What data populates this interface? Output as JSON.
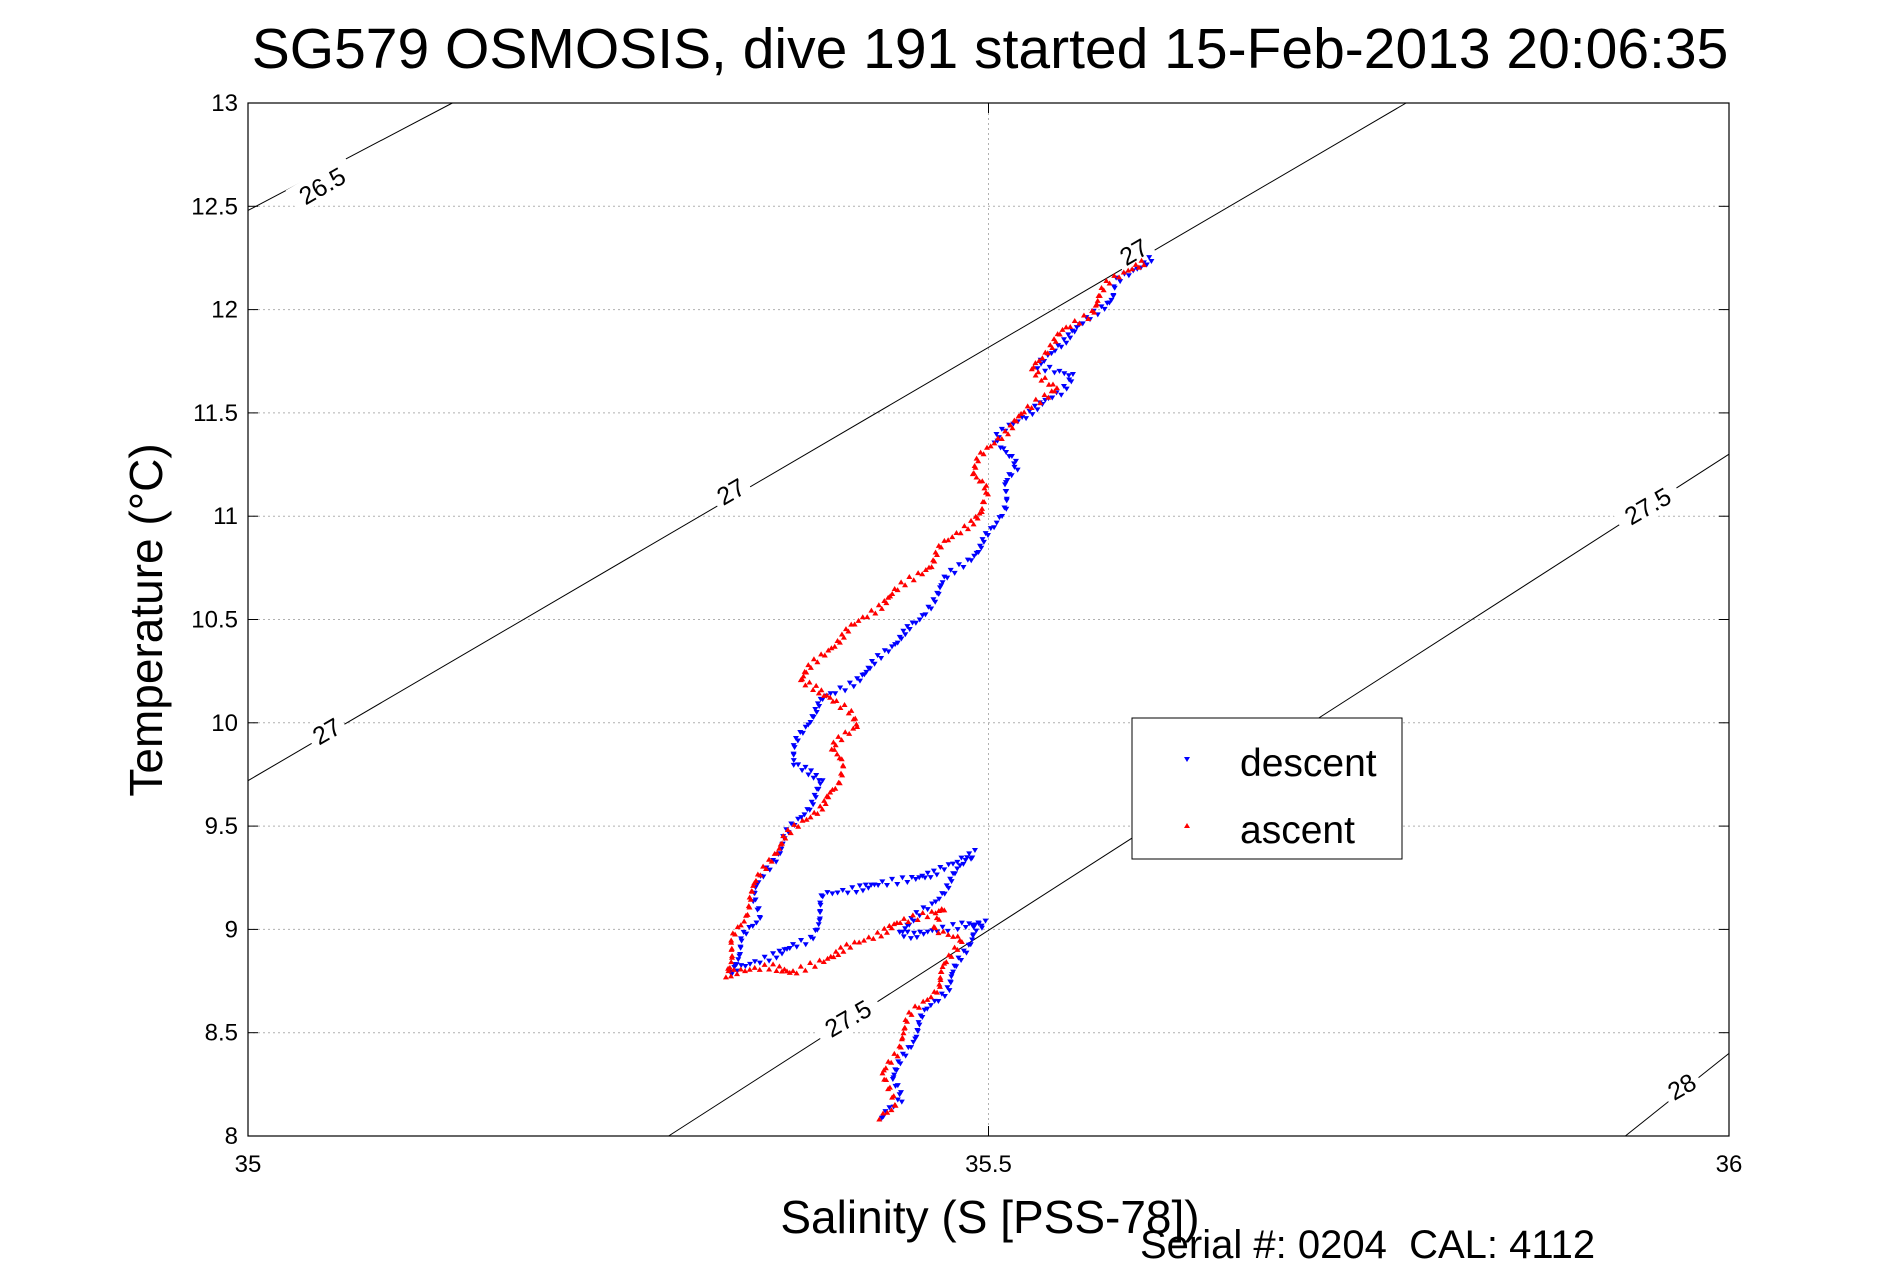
{
  "chart_data": {
    "type": "scatter",
    "title": "SG579 OSMOSIS, dive 191 started 15-Feb-2013 20:06:35",
    "xlabel": "Salinity (S [PSS-78])",
    "ylabel": "Temperature (°C)",
    "xlim": [
      35,
      36
    ],
    "ylim": [
      8,
      13
    ],
    "x_ticks": [
      "35",
      "35.5",
      "36"
    ],
    "y_ticks": [
      "8",
      "8.5",
      "9",
      "9.5",
      "10",
      "10.5",
      "11",
      "11.5",
      "12",
      "12.5",
      "13"
    ],
    "grid": true,
    "legend_position": "center-right",
    "footer": "Serial #: 0204  CAL: 4112",
    "isopycnals": [
      {
        "sigma": 26.5,
        "label": "26.5",
        "points": [
          [
            35.0,
            12.48
          ],
          [
            35.138,
            13.0
          ]
        ]
      },
      {
        "sigma": 27.0,
        "label": "27",
        "points": [
          [
            35.0,
            9.72
          ],
          [
            35.782,
            13.0
          ]
        ]
      },
      {
        "sigma": 27.5,
        "label": "27.5",
        "points": [
          [
            35.284,
            8.0
          ],
          [
            36.0,
            11.3
          ]
        ]
      },
      {
        "sigma": 28.0,
        "label": "28",
        "points": [
          [
            35.93,
            8.0
          ],
          [
            36.0,
            8.4
          ]
        ]
      }
    ],
    "isopycnal_labels": [
      {
        "text": "26.5",
        "x": 35.05,
        "y": 12.6
      },
      {
        "text": "27",
        "x": 35.598,
        "y": 12.28
      },
      {
        "text": "27",
        "x": 35.326,
        "y": 11.12
      },
      {
        "text": "27",
        "x": 35.053,
        "y": 9.96
      },
      {
        "text": "27.5",
        "x": 35.945,
        "y": 11.05
      },
      {
        "text": "27.5",
        "x": 35.405,
        "y": 8.57
      },
      {
        "text": "28",
        "x": 35.968,
        "y": 8.24
      }
    ],
    "series": [
      {
        "name": "descent",
        "color": "#0000ff",
        "marker": "triangle-down",
        "points": [
          [
            35.61,
            12.25
          ],
          [
            35.603,
            12.22
          ],
          [
            35.588,
            12.14
          ],
          [
            35.585,
            12.06
          ],
          [
            35.57,
            11.98
          ],
          [
            35.56,
            11.9
          ],
          [
            35.545,
            11.82
          ],
          [
            35.535,
            11.73
          ],
          [
            35.555,
            11.68
          ],
          [
            35.55,
            11.6
          ],
          [
            35.53,
            11.52
          ],
          [
            35.517,
            11.45
          ],
          [
            35.505,
            11.37
          ],
          [
            35.51,
            11.31
          ],
          [
            35.52,
            11.24
          ],
          [
            35.512,
            11.15
          ],
          [
            35.51,
            11.05
          ],
          [
            35.505,
            10.95
          ],
          [
            35.495,
            10.86
          ],
          [
            35.485,
            10.78
          ],
          [
            35.472,
            10.7
          ],
          [
            35.462,
            10.6
          ],
          [
            35.455,
            10.5
          ],
          [
            35.44,
            10.42
          ],
          [
            35.43,
            10.34
          ],
          [
            35.42,
            10.26
          ],
          [
            35.405,
            10.18
          ],
          [
            35.39,
            10.12
          ],
          [
            35.38,
            10.04
          ],
          [
            35.375,
            9.96
          ],
          [
            35.37,
            9.88
          ],
          [
            35.367,
            9.8
          ],
          [
            35.39,
            9.72
          ],
          [
            35.38,
            9.62
          ],
          [
            35.372,
            9.53
          ],
          [
            35.362,
            9.44
          ],
          [
            35.355,
            9.34
          ],
          [
            35.348,
            9.25
          ],
          [
            35.34,
            9.15
          ],
          [
            35.345,
            9.05
          ],
          [
            35.335,
            8.96
          ],
          [
            35.33,
            8.87
          ],
          [
            35.325,
            8.79
          ],
          [
            35.38,
            8.95
          ],
          [
            35.39,
            9.17
          ],
          [
            35.465,
            9.27
          ],
          [
            35.48,
            9.34
          ],
          [
            35.49,
            9.37
          ],
          [
            35.47,
            9.2
          ],
          [
            35.462,
            9.12
          ],
          [
            35.438,
            8.98
          ],
          [
            35.45,
            8.97
          ],
          [
            35.48,
            9.02
          ],
          [
            35.5,
            9.03
          ],
          [
            35.49,
            9.0
          ],
          [
            35.484,
            8.9
          ],
          [
            35.478,
            8.8
          ],
          [
            35.472,
            8.72
          ],
          [
            35.46,
            8.62
          ],
          [
            35.452,
            8.52
          ],
          [
            35.445,
            8.42
          ],
          [
            35.44,
            8.33
          ],
          [
            35.435,
            8.27
          ],
          [
            35.44,
            8.18
          ],
          [
            35.432,
            8.12
          ],
          [
            35.43,
            8.08
          ]
        ]
      },
      {
        "name": "ascent",
        "color": "#ff0000",
        "marker": "triangle-up",
        "points": [
          [
            35.605,
            12.23
          ],
          [
            35.595,
            12.2
          ],
          [
            35.583,
            12.14
          ],
          [
            35.575,
            12.06
          ],
          [
            35.568,
            11.98
          ],
          [
            35.552,
            11.9
          ],
          [
            35.538,
            11.8
          ],
          [
            35.53,
            11.72
          ],
          [
            35.545,
            11.62
          ],
          [
            35.532,
            11.55
          ],
          [
            35.522,
            11.48
          ],
          [
            35.505,
            11.37
          ],
          [
            35.495,
            11.28
          ],
          [
            35.488,
            11.2
          ],
          [
            35.5,
            11.12
          ],
          [
            35.497,
            11.02
          ],
          [
            35.482,
            10.94
          ],
          [
            35.47,
            10.86
          ],
          [
            35.46,
            10.76
          ],
          [
            35.445,
            10.68
          ],
          [
            35.432,
            10.6
          ],
          [
            35.418,
            10.52
          ],
          [
            35.405,
            10.44
          ],
          [
            35.392,
            10.36
          ],
          [
            35.382,
            10.28
          ],
          [
            35.372,
            10.2
          ],
          [
            35.395,
            10.12
          ],
          [
            35.405,
            10.06
          ],
          [
            35.41,
            9.98
          ],
          [
            35.395,
            9.88
          ],
          [
            35.4,
            9.8
          ],
          [
            35.4,
            9.7
          ],
          [
            35.39,
            9.62
          ],
          [
            35.375,
            9.52
          ],
          [
            35.362,
            9.44
          ],
          [
            35.352,
            9.34
          ],
          [
            35.345,
            9.24
          ],
          [
            35.337,
            9.14
          ],
          [
            35.335,
            9.04
          ],
          [
            35.328,
            8.95
          ],
          [
            35.325,
            8.86
          ],
          [
            35.322,
            8.78
          ],
          [
            35.35,
            8.82
          ],
          [
            35.37,
            8.79
          ],
          [
            35.44,
            9.03
          ],
          [
            35.452,
            9.06
          ],
          [
            35.47,
            9.1
          ],
          [
            35.465,
            9.0
          ],
          [
            35.48,
            8.95
          ],
          [
            35.475,
            8.88
          ],
          [
            35.47,
            8.8
          ],
          [
            35.465,
            8.72
          ],
          [
            35.458,
            8.66
          ],
          [
            35.45,
            8.6
          ],
          [
            35.445,
            8.55
          ],
          [
            35.44,
            8.48
          ],
          [
            35.438,
            8.4
          ],
          [
            35.43,
            8.3
          ],
          [
            35.432,
            8.22
          ],
          [
            35.436,
            8.14
          ],
          [
            35.428,
            8.09
          ]
        ]
      }
    ]
  }
}
